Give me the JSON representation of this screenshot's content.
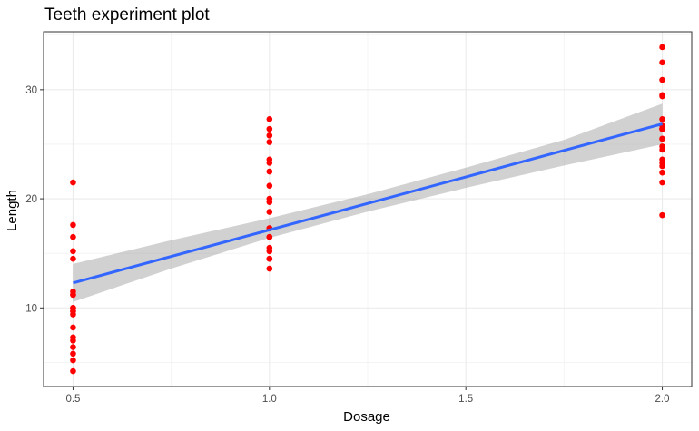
{
  "chart_data": {
    "type": "scatter",
    "title": "Teeth experiment plot",
    "xlabel": "Dosage",
    "ylabel": "Length",
    "xlim": [
      0.425,
      2.075
    ],
    "ylim": [
      2.79,
      35.31
    ],
    "x_ticks": [
      0.5,
      1.0,
      1.5,
      2.0
    ],
    "x_tick_labels": [
      "0.5",
      "1.0",
      "1.5",
      "2.0"
    ],
    "x_minor_ticks": [
      0.75,
      1.25,
      1.75
    ],
    "y_ticks": [
      10,
      20,
      30
    ],
    "y_tick_labels": [
      "10",
      "20",
      "30"
    ],
    "y_minor_ticks": [
      5,
      15,
      25,
      35
    ],
    "grid": true,
    "point_color": "#ff0000",
    "points": {
      "x": [
        0.5,
        0.5,
        0.5,
        0.5,
        0.5,
        0.5,
        0.5,
        0.5,
        0.5,
        0.5,
        0.5,
        0.5,
        0.5,
        0.5,
        0.5,
        0.5,
        0.5,
        0.5,
        0.5,
        0.5,
        1.0,
        1.0,
        1.0,
        1.0,
        1.0,
        1.0,
        1.0,
        1.0,
        1.0,
        1.0,
        1.0,
        1.0,
        1.0,
        1.0,
        1.0,
        1.0,
        1.0,
        1.0,
        1.0,
        1.0,
        2.0,
        2.0,
        2.0,
        2.0,
        2.0,
        2.0,
        2.0,
        2.0,
        2.0,
        2.0,
        2.0,
        2.0,
        2.0,
        2.0,
        2.0,
        2.0,
        2.0,
        2.0,
        2.0,
        2.0
      ],
      "y": [
        4.2,
        11.5,
        7.3,
        5.8,
        6.4,
        10.0,
        11.2,
        11.2,
        5.2,
        7.0,
        15.2,
        21.5,
        17.6,
        9.7,
        14.5,
        10.0,
        8.2,
        9.4,
        16.5,
        9.7,
        16.5,
        16.5,
        15.2,
        17.3,
        22.5,
        17.3,
        13.6,
        14.5,
        18.8,
        15.5,
        19.7,
        23.3,
        23.6,
        26.4,
        20.0,
        25.2,
        25.8,
        21.2,
        14.5,
        27.3,
        23.6,
        18.5,
        33.9,
        25.5,
        26.4,
        32.5,
        26.7,
        21.5,
        23.3,
        29.5,
        25.5,
        26.4,
        22.4,
        24.5,
        24.8,
        30.9,
        26.4,
        27.3,
        29.4,
        23.0
      ]
    },
    "regression": {
      "color": "#3366ff",
      "x_start": 0.5,
      "y_start": 12.29,
      "x_end": 2.0,
      "y_end": 26.86
    },
    "confidence_band": {
      "color": "#999999",
      "opacity": 0.45,
      "x": [
        0.5,
        0.75,
        1.0,
        1.25,
        1.5,
        1.75,
        2.0
      ],
      "lower": [
        10.55,
        13.6,
        16.42,
        18.82,
        21.0,
        23.05,
        25.0
      ],
      "upper": [
        14.03,
        16.2,
        18.22,
        20.42,
        22.86,
        25.4,
        28.72
      ]
    }
  }
}
